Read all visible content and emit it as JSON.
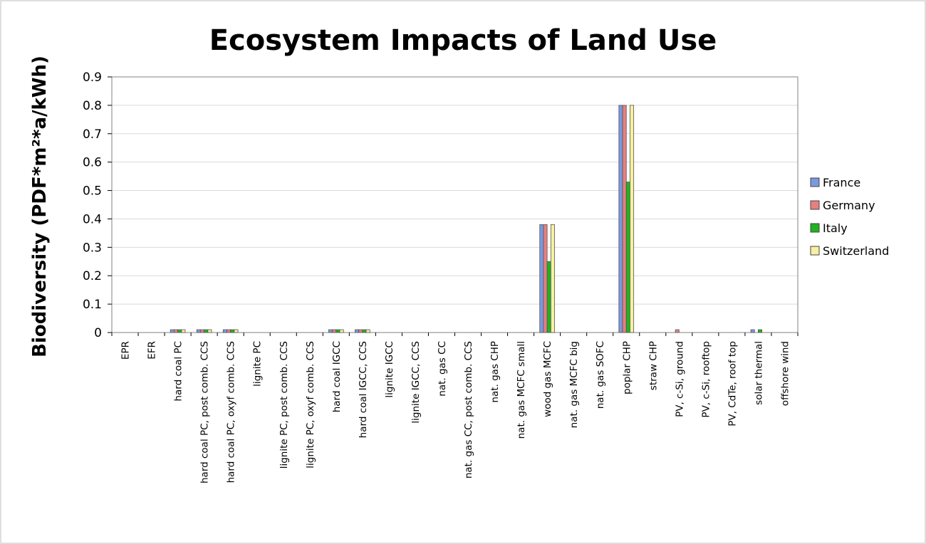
{
  "chart_data": {
    "type": "bar",
    "title": "Ecosystem Impacts of Land Use",
    "ylabel": "Biodiversity (PDF*m²*a/kWh)",
    "ylim": [
      0,
      0.9
    ],
    "yticks": [
      "0",
      "0.1",
      "0.2",
      "0.3",
      "0.4",
      "0.5",
      "0.6",
      "0.7",
      "0.8",
      "0.9"
    ],
    "grid": true,
    "legend_position": "right",
    "categories": [
      "EPR",
      "EFR",
      "hard coal PC",
      "hard coal PC, post comb. CCS",
      "hard coal PC, oxyf comb. CCS",
      "lignite PC",
      "lignite PC, post comb. CCS",
      "lignite PC, oxyf comb. CCS",
      "hard coal IGCC",
      "hard coal IGCC, CCS",
      "lignite IGCC",
      "lignite IGCC, CCS",
      "nat. gas CC",
      "nat. gas CC, post comb. CCS",
      "nat. gas CHP",
      "nat. gas MCFC small",
      "wood gas MCFC",
      "nat. gas MCFC big",
      "nat. gas SOFC",
      "poplar CHP",
      "straw CHP",
      "PV, c-Si, ground",
      "PV, c-Si, rooftop",
      "PV, CdTe, roof top",
      "solar thermal",
      "offshore wind"
    ],
    "series": [
      {
        "name": "France",
        "color": "#7a99e0",
        "values": [
          0,
          0,
          0.01,
          0.01,
          0.01,
          0,
          0,
          0,
          0.01,
          0.01,
          0,
          0,
          0,
          0,
          0,
          0,
          0.38,
          0,
          0,
          0.8,
          0,
          0,
          0,
          0,
          0.01,
          0
        ]
      },
      {
        "name": "Germany",
        "color": "#e87f7f",
        "values": [
          0,
          0,
          0.01,
          0.01,
          0.01,
          0,
          0,
          0,
          0.01,
          0.01,
          0,
          0,
          0,
          0,
          0,
          0,
          0.38,
          0,
          0,
          0.8,
          0,
          0.01,
          0,
          0,
          0,
          0
        ]
      },
      {
        "name": "Italy",
        "color": "#1fb31f",
        "values": [
          0,
          0,
          0.01,
          0.01,
          0.01,
          0,
          0,
          0,
          0.01,
          0.01,
          0,
          0,
          0,
          0,
          0,
          0,
          0.25,
          0,
          0,
          0.53,
          0,
          0,
          0,
          0,
          0.01,
          0
        ]
      },
      {
        "name": "Switzerland",
        "color": "#f7f0a0",
        "values": [
          0,
          0,
          0.01,
          0.01,
          0.01,
          0,
          0,
          0,
          0.01,
          0.01,
          0,
          0,
          0,
          0,
          0,
          0,
          0.38,
          0,
          0,
          0.8,
          0,
          0,
          0,
          0,
          0,
          0
        ]
      }
    ]
  }
}
